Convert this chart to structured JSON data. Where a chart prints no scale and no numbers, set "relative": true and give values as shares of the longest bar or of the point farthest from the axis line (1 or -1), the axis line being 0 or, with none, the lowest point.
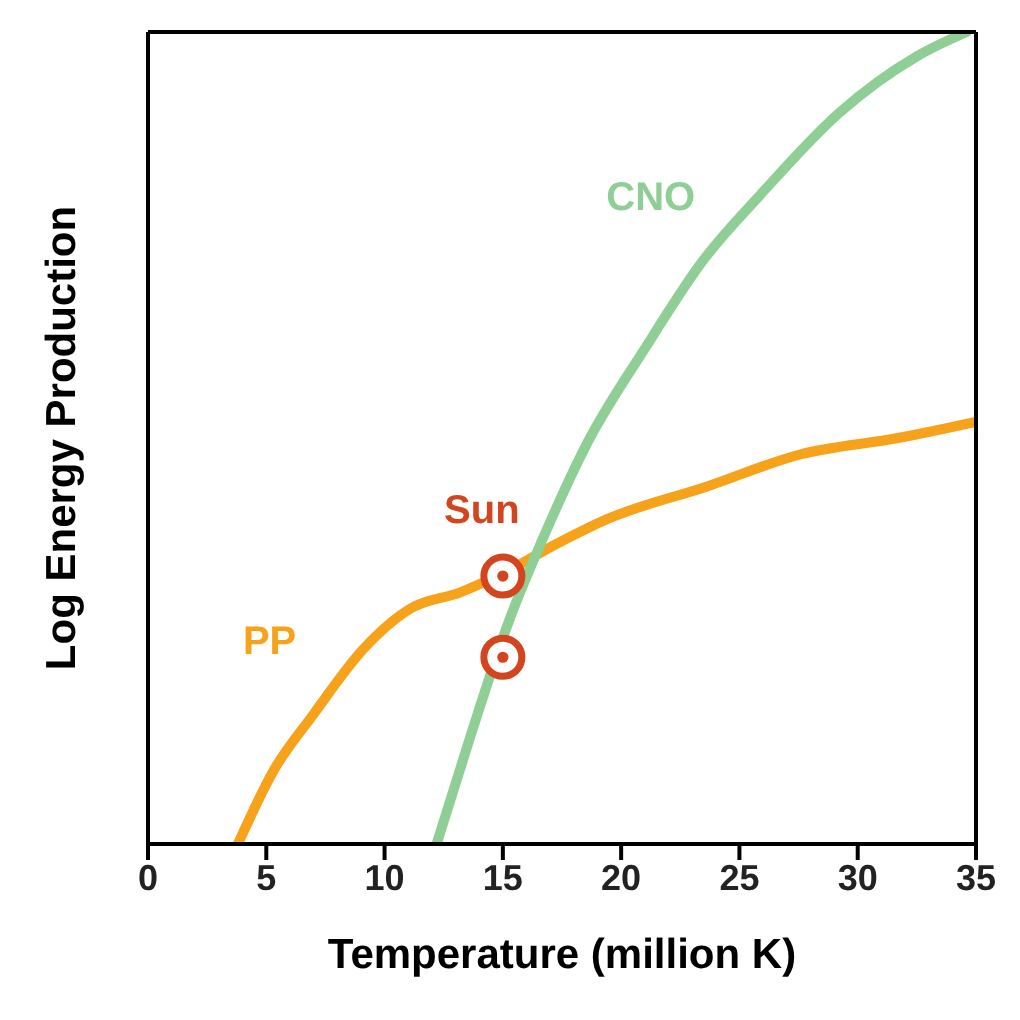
{
  "chart_data": {
    "type": "line",
    "xlabel": "Temperature (million K)",
    "ylabel": "Log Energy Production",
    "relative": true,
    "xlim": [
      0,
      35
    ],
    "xticks": [
      0,
      5,
      10,
      15,
      20,
      25,
      30,
      35
    ],
    "marker": "none",
    "line_style": "solid",
    "series": [
      {
        "name": "PP",
        "color": "#f7a21b",
        "x": [
          3.8,
          5.3,
          7.0,
          9.1,
          11.1,
          13.2,
          15.1,
          17.3,
          19.4,
          23.6,
          27.6,
          31.7,
          35
        ],
        "values": [
          0,
          0.09,
          0.16,
          0.24,
          0.29,
          0.31,
          0.335,
          0.37,
          0.4,
          0.44,
          0.48,
          0.5,
          0.52
        ]
      },
      {
        "name": "CNO",
        "color": "#8fcf95",
        "x": [
          12.2,
          13.6,
          15.2,
          16.9,
          18.5,
          21.0,
          23.5,
          25.9,
          29.2,
          32.5,
          34.6
        ],
        "values": [
          0,
          0.13,
          0.27,
          0.39,
          0.49,
          0.61,
          0.72,
          0.8,
          0.9,
          0.97,
          1.0
        ]
      },
      {
        "name": "Sun",
        "type": "scatter",
        "marker": "circle",
        "color": "#d2451e",
        "x": [
          15,
          15
        ],
        "values": [
          0.33,
          0.23
        ]
      }
    ]
  }
}
